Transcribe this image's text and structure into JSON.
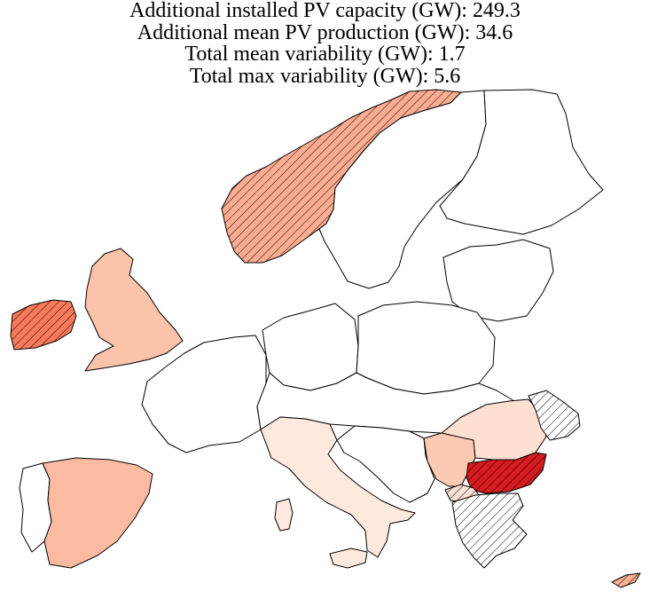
{
  "title": {
    "lines": [
      "Additional installed PV capacity (GW): 249.3",
      "Additional mean PV production (GW): 34.6",
      "Total mean variability (GW): 1.7",
      "Total max variability (GW): 5.6"
    ]
  },
  "map": {
    "regions": [
      {
        "name": "norway",
        "fill": "#fcad91",
        "hatched": true
      },
      {
        "name": "sweden",
        "fill": "#ffffff",
        "hatched": false
      },
      {
        "name": "finland",
        "fill": "#ffffff",
        "hatched": false
      },
      {
        "name": "ireland",
        "fill": "#fb7a5b",
        "hatched": true
      },
      {
        "name": "united-kingdom",
        "fill": "#fcc3ab",
        "hatched": false
      },
      {
        "name": "france",
        "fill": "#ffffff",
        "hatched": false
      },
      {
        "name": "spain",
        "fill": "#fcbba1",
        "hatched": false
      },
      {
        "name": "portugal",
        "fill": "#ffffff",
        "hatched": false
      },
      {
        "name": "italy",
        "fill": "#fee9df",
        "hatched": false
      },
      {
        "name": "germany",
        "fill": "#ffffff",
        "hatched": false
      },
      {
        "name": "poland",
        "fill": "#ffffff",
        "hatched": false
      },
      {
        "name": "romania",
        "fill": "#fde0d2",
        "hatched": false
      },
      {
        "name": "serbia",
        "fill": "#fcc9b3",
        "hatched": false
      },
      {
        "name": "bulgaria",
        "fill": "#d81b1e",
        "hatched": true
      },
      {
        "name": "greece",
        "fill": "#ffffff",
        "hatched": true
      },
      {
        "name": "moldova",
        "fill": "#ffffff",
        "hatched": true
      },
      {
        "name": "north-macedonia",
        "fill": "#fde3d6",
        "hatched": true
      },
      {
        "name": "cyprus",
        "fill": "#fcb092",
        "hatched": true
      },
      {
        "name": "baltics",
        "fill": "#ffffff",
        "hatched": false
      },
      {
        "name": "central-europe",
        "fill": "#ffffff",
        "hatched": false
      },
      {
        "name": "balkans-west",
        "fill": "#ffffff",
        "hatched": false
      }
    ]
  }
}
